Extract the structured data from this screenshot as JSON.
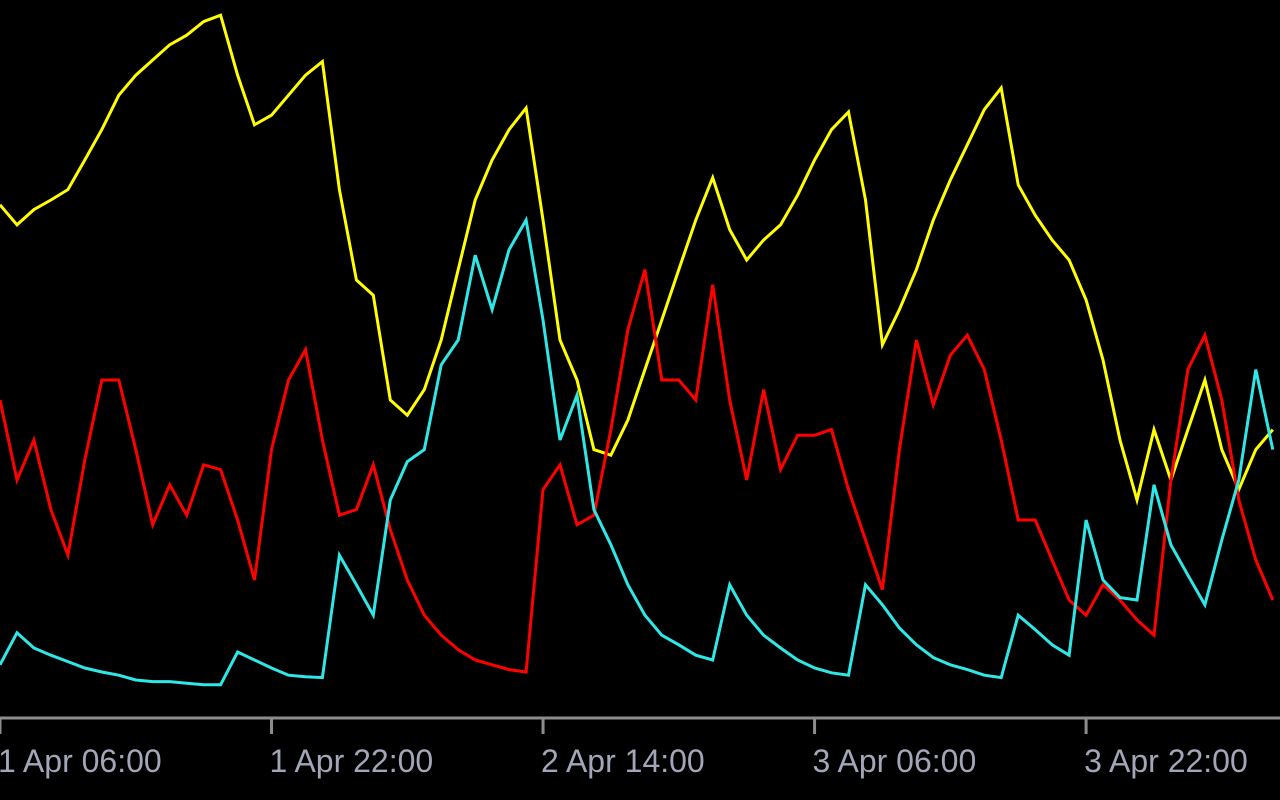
{
  "chart_data": {
    "type": "line",
    "categories": [
      "1 Apr 06:00",
      null,
      null,
      null,
      null,
      null,
      null,
      null,
      null,
      null,
      null,
      null,
      null,
      null,
      null,
      null,
      "1 Apr 22:00",
      null,
      null,
      null,
      null,
      null,
      null,
      null,
      null,
      null,
      null,
      null,
      null,
      null,
      null,
      null,
      "2 Apr 14:00",
      null,
      null,
      null,
      null,
      null,
      null,
      null,
      null,
      null,
      null,
      null,
      null,
      null,
      null,
      null,
      "3 Apr 06:00",
      null,
      null,
      null,
      null,
      null,
      null,
      null,
      null,
      null,
      null,
      null,
      null,
      null,
      null,
      null,
      "3 Apr 22:00",
      null,
      null,
      null,
      null,
      null,
      null,
      null,
      null,
      null,
      null,
      null
    ],
    "ylim": [
      0,
      100
    ],
    "series": [
      {
        "color": "#ffff00",
        "values": [
          74.4,
          71.9,
          73.8,
          75,
          76.3,
          80,
          83.8,
          88.1,
          90.6,
          92.5,
          94.4,
          95.6,
          97.3,
          98.1,
          90.6,
          84.4,
          85.6,
          88.1,
          90.6,
          92.3,
          76.3,
          65,
          63.1,
          50,
          48.1,
          51.3,
          57.5,
          66.3,
          75,
          80,
          83.8,
          86.5,
          72.5,
          57.5,
          52.5,
          43.8,
          43.1,
          47.5,
          53.8,
          60,
          66.3,
          72.5,
          77.8,
          71.3,
          67.5,
          70,
          71.9,
          75.6,
          80,
          83.8,
          86,
          75,
          56.9,
          61.3,
          66.3,
          72.5,
          77.5,
          81.9,
          86.3,
          89,
          76.9,
          73.1,
          70,
          67.5,
          62.5,
          55,
          45,
          37.5,
          46.3,
          40,
          46.3,
          52.5,
          43.8,
          38.8,
          43.8,
          46.3
        ]
      },
      {
        "color": "#ff0000",
        "values": [
          50,
          40,
          45,
          36.3,
          30.6,
          42.5,
          52.5,
          52.5,
          43.8,
          34.4,
          39.4,
          35.6,
          41.9,
          41.3,
          35,
          27.5,
          43.8,
          52.5,
          56.3,
          45,
          35.6,
          36.3,
          41.9,
          33.8,
          27.5,
          23.1,
          20.6,
          18.8,
          17.5,
          16.9,
          16.3,
          16,
          38.8,
          41.9,
          34.4,
          35.6,
          46.3,
          58.8,
          66.3,
          52.5,
          52.5,
          50,
          64.4,
          50,
          40,
          51.3,
          41.3,
          45.6,
          45.6,
          46.3,
          38.8,
          32.5,
          26.3,
          43.8,
          57.5,
          49.4,
          55.6,
          58.1,
          53.8,
          45,
          35,
          35,
          30,
          25,
          23.1,
          26.9,
          25,
          22.5,
          20.6,
          40,
          53.8,
          58.1,
          50,
          37.5,
          30,
          25
        ]
      },
      {
        "color": "#2ee8e8",
        "values": [
          16.9,
          20.9,
          19,
          18.1,
          17.3,
          16.5,
          16,
          15.6,
          15,
          14.8,
          14.8,
          14.6,
          14.4,
          14.4,
          18.5,
          17.5,
          16.5,
          15.6,
          15.4,
          15.3,
          30.6,
          26.9,
          23.1,
          37.5,
          42.3,
          43.8,
          54.4,
          57.5,
          68.1,
          61.3,
          68.8,
          72.5,
          60,
          45,
          50.6,
          36.3,
          31.9,
          26.9,
          23.1,
          20.6,
          19.4,
          18.1,
          17.5,
          26.9,
          23.1,
          20.6,
          19,
          17.5,
          16.5,
          15.9,
          15.6,
          26.9,
          24.4,
          21.5,
          19.4,
          17.8,
          16.9,
          16.3,
          15.6,
          15.3,
          23.1,
          21.3,
          19.4,
          18.1,
          35,
          27.5,
          25.3,
          25,
          39.4,
          31.9,
          28.1,
          24.4,
          32.5,
          40,
          53.8,
          43.8
        ]
      }
    ]
  }
}
